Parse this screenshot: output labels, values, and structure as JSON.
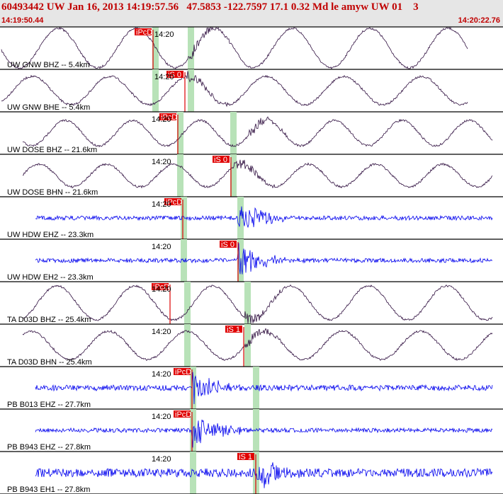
{
  "header": {
    "event": "60493442 UW Jan 16, 2013 14:19:57.56   47.5853 -122.7597 17.1 0.32 Md le amyw UW 01    3",
    "start_time": "14:19:50.44",
    "end_time": "14:20:22.76"
  },
  "traces": [
    {
      "label": "UW GNW BHZ -- 5.4km",
      "time": "14:20",
      "pick": "iPcD"
    },
    {
      "label": "UW GNW BHE -- 5.4km",
      "time": "14:20",
      "pick": "iS 0"
    },
    {
      "label": "UW DOSE BHZ -- 21.6km",
      "time": "14:20",
      "pick": "iPcD"
    },
    {
      "label": "UW DOSE BHN -- 21.6km",
      "time": "14:20",
      "pick": "iS 0"
    },
    {
      "label": "UW HDW EHZ -- 23.3km",
      "time": "14:20",
      "pick": "iPcD"
    },
    {
      "label": "UW HDW EH2 -- 23.3km",
      "time": "14:20",
      "pick": "iS 0"
    },
    {
      "label": "TA D03D BHZ -- 25.4km",
      "time": "14:20",
      "pick": "iPcD"
    },
    {
      "label": "TA D03D BHN -- 25.4km",
      "time": "14:20",
      "pick": "iS 1"
    },
    {
      "label": "PB B013 EHZ -- 27.7km",
      "time": "14:20",
      "pick": "iPcD"
    },
    {
      "label": "PB B943 EHZ -- 27.8km",
      "time": "14:20",
      "pick": "iPcD"
    },
    {
      "label": "PB B943 EH1 -- 27.8km",
      "time": "14:20",
      "pick": "iS 1"
    }
  ]
}
